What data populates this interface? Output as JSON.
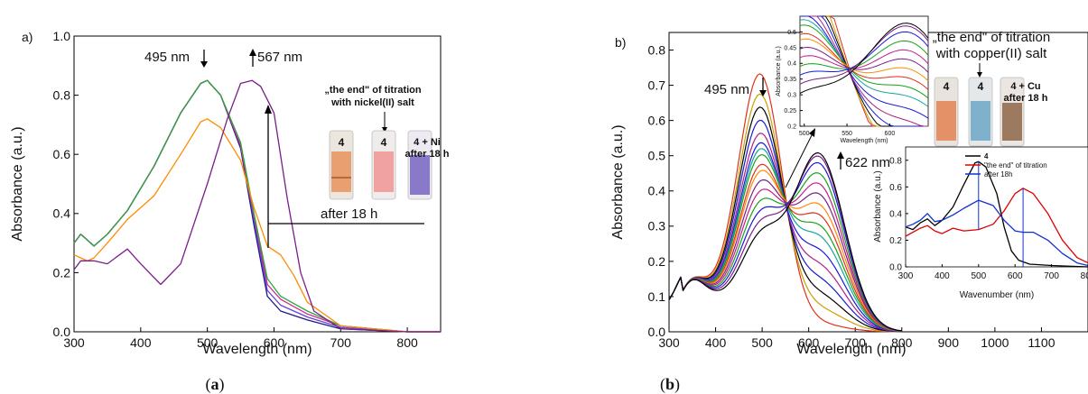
{
  "colors": {
    "purple": "#7a1e8a",
    "orange": "#ff8c00",
    "black": "#000000",
    "red": "#e00000",
    "blue": "#1030d0"
  },
  "chart_data": [
    {
      "type": "line",
      "panel_label": "a)",
      "caption_open": "(",
      "caption_letter": "a",
      "caption_close": ")",
      "xlabel": "Wavelength (nm)",
      "ylabel": "Absorbance (a.u.)",
      "xlim": [
        300,
        850
      ],
      "ylim": [
        0,
        1.0
      ],
      "xticks": [
        "300",
        "400",
        "500",
        "600",
        "700",
        "800"
      ],
      "yticks": [
        "0.0",
        "0.2",
        "0.4",
        "0.6",
        "0.8",
        "1.0"
      ],
      "annotations": {
        "peak1": "495 nm",
        "peak2": "567 nm",
        "after": "after 18 h",
        "title_line1": "„the end\" of titration",
        "title_line2": "with nickel(II) salt",
        "vial1": "4",
        "vial2": "4",
        "vial3_line1": "4 + Ni",
        "vial3_line2": "after 18 h"
      },
      "series": [
        {
          "color": "#1a1a8a",
          "x": [
            300,
            310,
            320,
            330,
            350,
            380,
            420,
            460,
            490,
            500,
            520,
            550,
            570,
            590,
            610,
            650,
            700,
            800,
            850
          ],
          "y": [
            0.3,
            0.33,
            0.31,
            0.29,
            0.33,
            0.41,
            0.56,
            0.74,
            0.84,
            0.85,
            0.8,
            0.62,
            0.36,
            0.12,
            0.07,
            0.04,
            0.01,
            0,
            0
          ]
        },
        {
          "color": "#6a3fd9",
          "x": [
            300,
            310,
            320,
            330,
            350,
            380,
            420,
            460,
            490,
            500,
            520,
            550,
            570,
            590,
            610,
            650,
            700,
            800,
            850
          ],
          "y": [
            0.3,
            0.33,
            0.31,
            0.29,
            0.33,
            0.41,
            0.56,
            0.74,
            0.84,
            0.85,
            0.8,
            0.63,
            0.38,
            0.14,
            0.09,
            0.05,
            0.015,
            0,
            0
          ]
        },
        {
          "color": "#cc2e8e",
          "x": [
            300,
            310,
            320,
            330,
            350,
            380,
            420,
            460,
            490,
            500,
            520,
            550,
            570,
            590,
            610,
            650,
            700,
            800,
            850
          ],
          "y": [
            0.3,
            0.33,
            0.31,
            0.29,
            0.33,
            0.41,
            0.56,
            0.74,
            0.84,
            0.85,
            0.8,
            0.63,
            0.39,
            0.16,
            0.11,
            0.06,
            0.02,
            0,
            0
          ]
        },
        {
          "color": "#2fa83a",
          "x": [
            300,
            310,
            320,
            330,
            350,
            380,
            420,
            460,
            490,
            500,
            520,
            550,
            570,
            590,
            610,
            650,
            700,
            800,
            850
          ],
          "y": [
            0.3,
            0.33,
            0.31,
            0.29,
            0.33,
            0.41,
            0.56,
            0.74,
            0.84,
            0.85,
            0.8,
            0.64,
            0.4,
            0.18,
            0.12,
            0.07,
            0.02,
            0,
            0
          ]
        },
        {
          "color": "#ff8c00",
          "x": [
            300,
            310,
            320,
            330,
            350,
            380,
            420,
            460,
            490,
            500,
            520,
            550,
            570,
            590,
            610,
            630,
            650,
            700,
            800,
            850
          ],
          "y": [
            0.26,
            0.25,
            0.24,
            0.25,
            0.3,
            0.38,
            0.46,
            0.6,
            0.71,
            0.72,
            0.69,
            0.58,
            0.42,
            0.29,
            0.26,
            0.19,
            0.1,
            0.02,
            0,
            0
          ]
        },
        {
          "color": "#7a1e8a",
          "x": [
            300,
            310,
            330,
            350,
            380,
            400,
            430,
            460,
            500,
            530,
            550,
            567,
            580,
            600,
            620,
            640,
            660,
            700,
            800,
            850
          ],
          "y": [
            0.21,
            0.24,
            0.24,
            0.23,
            0.28,
            0.23,
            0.16,
            0.23,
            0.5,
            0.72,
            0.84,
            0.85,
            0.83,
            0.74,
            0.45,
            0.2,
            0.07,
            0.01,
            0,
            0
          ]
        }
      ]
    },
    {
      "type": "line",
      "panel_label": "b)",
      "caption_open": "(",
      "caption_letter": "b",
      "caption_close": ")",
      "xlabel": "Wavelength (nm)",
      "ylabel": "Absorbance (a.u.)",
      "xlim": [
        300,
        1200
      ],
      "ylim": [
        0,
        0.85
      ],
      "xticks": [
        "300",
        "400",
        "500",
        "600",
        "700",
        "800",
        "900",
        "1000",
        "1100"
      ],
      "yticks": [
        "0.0",
        "0.1",
        "0.2",
        "0.3",
        "0.4",
        "0.5",
        "0.6",
        "0.7",
        "0.8"
      ],
      "annotations": {
        "peak1": "495 nm",
        "peak2": "622 nm",
        "title_line1": "„the end\" of titration",
        "title_line2": "with copper(II) salt",
        "vial1": "4",
        "vial2": "4",
        "vial3_line1": "4 + Cu",
        "vial3_line2": "after 18 h"
      },
      "series_peak495": [
        0.73,
        0.67,
        0.63,
        0.59,
        0.55,
        0.52,
        0.5,
        0.48,
        0.45,
        0.43,
        0.4,
        0.37,
        0.34,
        0.31,
        0.28,
        0.25
      ],
      "series_peak622": [
        0.02,
        0.06,
        0.1,
        0.14,
        0.18,
        0.22,
        0.26,
        0.29,
        0.32,
        0.35,
        0.38,
        0.41,
        0.44,
        0.47,
        0.49,
        0.5
      ],
      "series_colors": [
        "#e0301e",
        "#c9a000",
        "#000000",
        "#1a1ad8",
        "#b0207f",
        "#1a1ad8",
        "#17a3a3",
        "#16a316",
        "#e0301e",
        "#ff8c00",
        "#7a1e8a",
        "#c41e8c",
        "#16a316",
        "#1a1ad8",
        "#7a1e8a",
        "#000000"
      ]
    }
  ],
  "inset_b_top": {
    "xlabel": "Wavelength (nm)",
    "ylabel": "Absorbance (a.u.)",
    "xticks": [
      "500",
      "550",
      "600"
    ],
    "yticks": [
      "0.2",
      "0.25",
      "0.3",
      "0.35",
      "0.4",
      "0.45",
      "0.5"
    ]
  },
  "inset_b_right": {
    "xlabel": "Wavenumber (nm)",
    "ylabel": "Absorbance (a.u.)",
    "xticks": [
      "300",
      "400",
      "500",
      "600",
      "700",
      "800"
    ],
    "yticks": [
      "0.0",
      "0.2",
      "0.4",
      "0.6",
      "0.8"
    ],
    "legend": [
      "4",
      "\"the end\" of titration",
      "after 18h"
    ],
    "series": [
      {
        "name": "4",
        "color": "#000000",
        "x": [
          300,
          320,
          340,
          360,
          380,
          400,
          430,
          460,
          490,
          500,
          520,
          550,
          570,
          590,
          610,
          640,
          700,
          800
        ],
        "y": [
          0.3,
          0.28,
          0.33,
          0.36,
          0.31,
          0.35,
          0.45,
          0.62,
          0.78,
          0.79,
          0.75,
          0.55,
          0.3,
          0.12,
          0.05,
          0.02,
          0.01,
          0
        ]
      },
      {
        "name": "\"the end\" of titration",
        "color": "#e00000",
        "x": [
          300,
          320,
          340,
          360,
          380,
          400,
          430,
          460,
          500,
          540,
          570,
          600,
          622,
          650,
          690,
          730,
          770,
          800
        ],
        "y": [
          0.23,
          0.26,
          0.29,
          0.31,
          0.27,
          0.25,
          0.29,
          0.27,
          0.28,
          0.32,
          0.42,
          0.55,
          0.59,
          0.55,
          0.4,
          0.2,
          0.07,
          0.03
        ]
      },
      {
        "name": "after 18h",
        "color": "#1030d0",
        "x": [
          300,
          320,
          340,
          360,
          380,
          400,
          430,
          460,
          500,
          540,
          570,
          600,
          622,
          650,
          690,
          730,
          770,
          800
        ],
        "y": [
          0.3,
          0.32,
          0.35,
          0.4,
          0.34,
          0.35,
          0.39,
          0.44,
          0.5,
          0.46,
          0.35,
          0.27,
          0.26,
          0.26,
          0.2,
          0.1,
          0.03,
          0.01
        ]
      }
    ]
  }
}
